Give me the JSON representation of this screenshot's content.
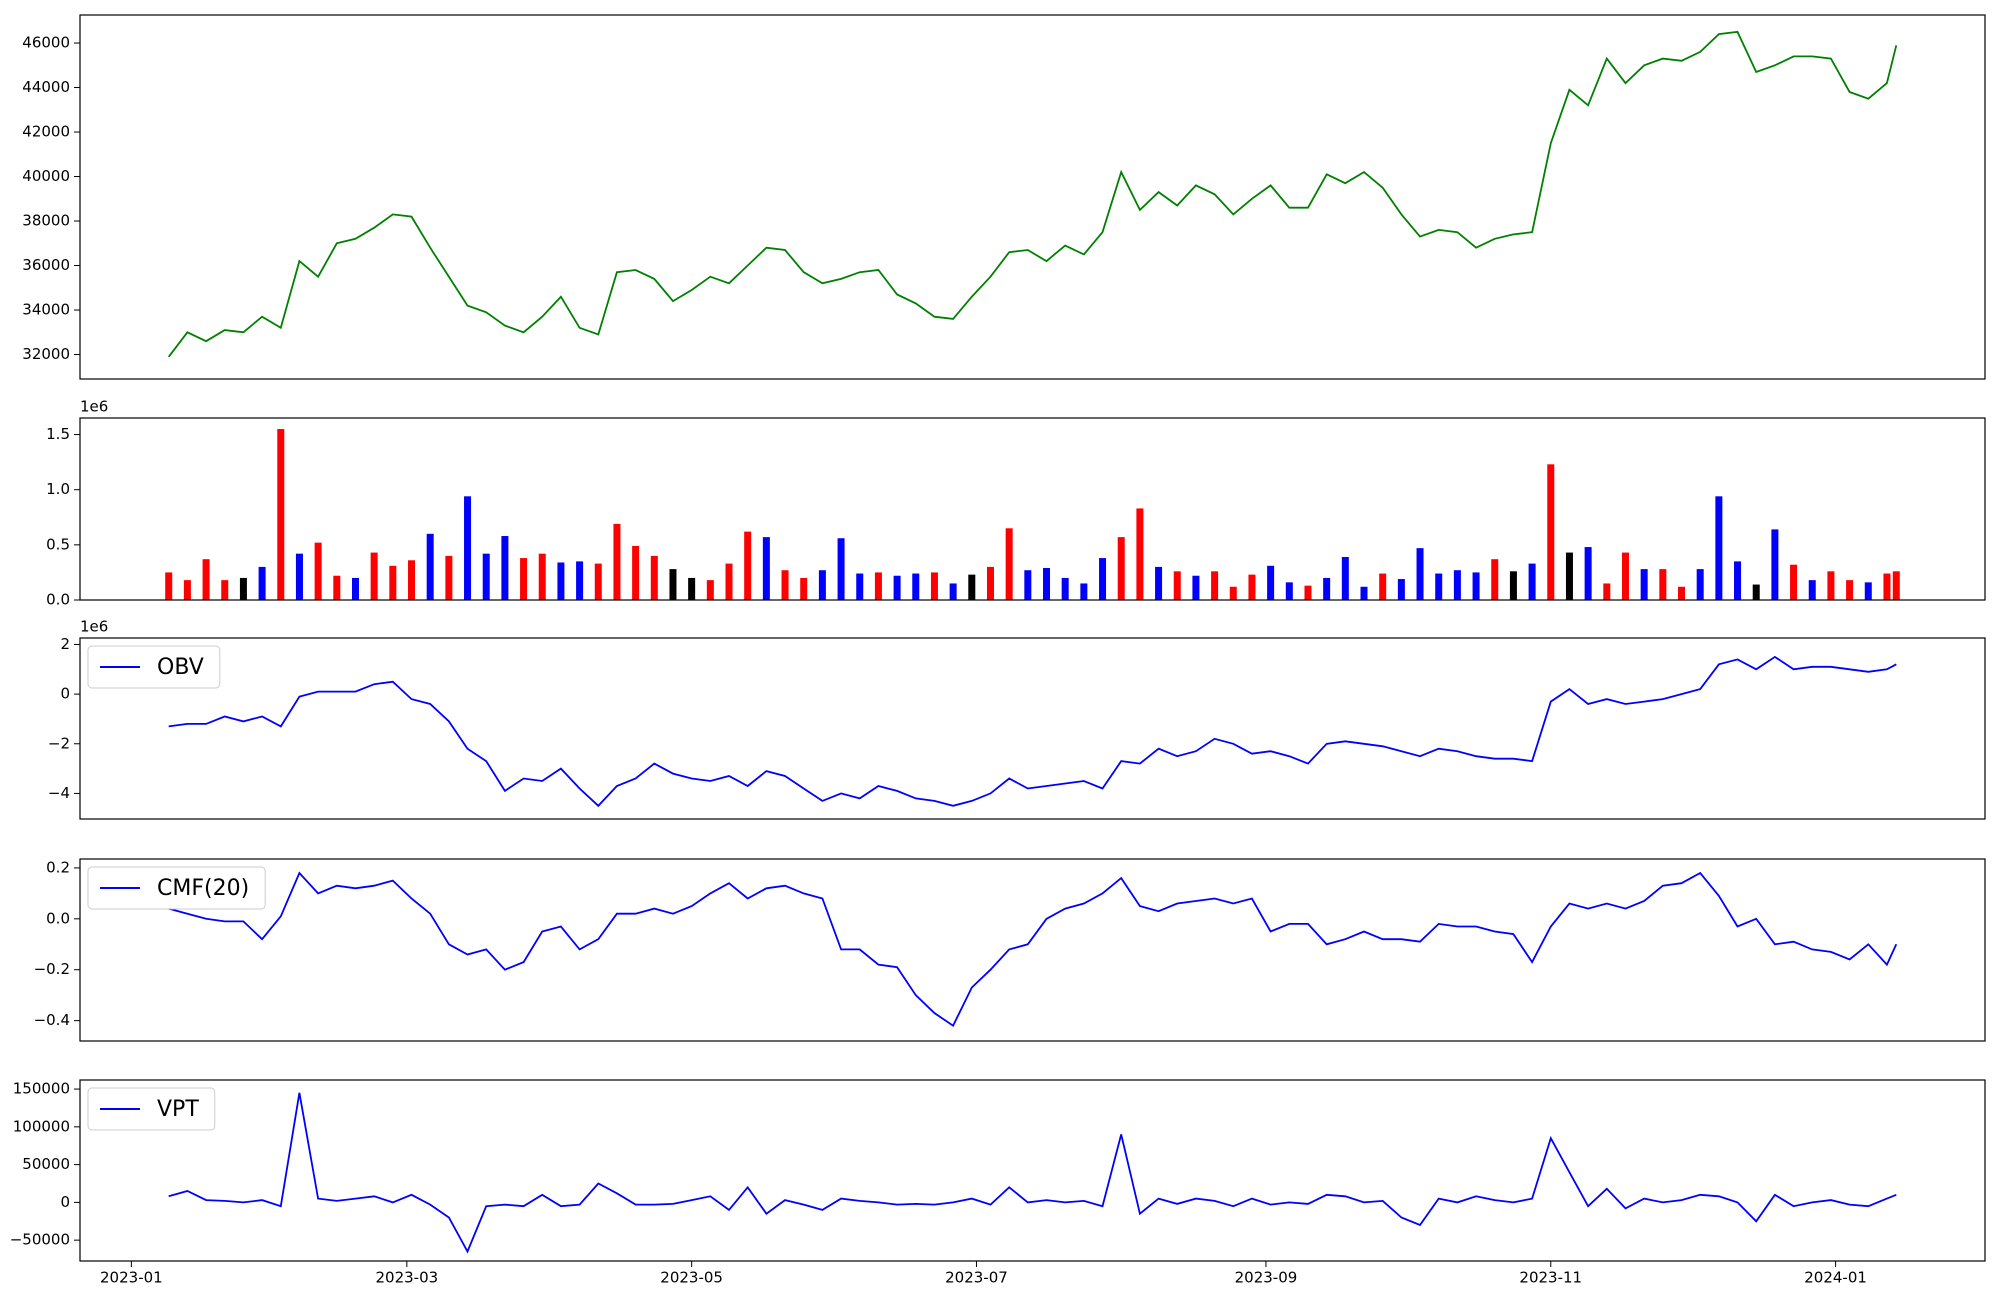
{
  "chart_data": {
    "type": "panels",
    "x": [
      "2023-01-09",
      "2023-01-13",
      "2023-01-17",
      "2023-01-21",
      "2023-01-25",
      "2023-01-29",
      "2023-02-02",
      "2023-02-06",
      "2023-02-10",
      "2023-02-14",
      "2023-02-18",
      "2023-02-22",
      "2023-02-26",
      "2023-03-02",
      "2023-03-06",
      "2023-03-10",
      "2023-03-14",
      "2023-03-18",
      "2023-03-22",
      "2023-03-26",
      "2023-03-30",
      "2023-04-03",
      "2023-04-07",
      "2023-04-11",
      "2023-04-15",
      "2023-04-19",
      "2023-04-23",
      "2023-04-27",
      "2023-05-01",
      "2023-05-05",
      "2023-05-09",
      "2023-05-13",
      "2023-05-17",
      "2023-05-21",
      "2023-05-25",
      "2023-05-29",
      "2023-06-02",
      "2023-06-06",
      "2023-06-10",
      "2023-06-14",
      "2023-06-18",
      "2023-06-22",
      "2023-06-26",
      "2023-06-30",
      "2023-07-04",
      "2023-07-08",
      "2023-07-12",
      "2023-07-16",
      "2023-07-20",
      "2023-07-24",
      "2023-07-28",
      "2023-08-01",
      "2023-08-05",
      "2023-08-09",
      "2023-08-13",
      "2023-08-17",
      "2023-08-21",
      "2023-08-25",
      "2023-08-29",
      "2023-09-02",
      "2023-09-06",
      "2023-09-10",
      "2023-09-14",
      "2023-09-18",
      "2023-09-22",
      "2023-09-26",
      "2023-09-30",
      "2023-10-04",
      "2023-10-08",
      "2023-10-12",
      "2023-10-16",
      "2023-10-20",
      "2023-10-24",
      "2023-10-28",
      "2023-11-01",
      "2023-11-05",
      "2023-11-09",
      "2023-11-13",
      "2023-11-17",
      "2023-11-21",
      "2023-11-25",
      "2023-11-29",
      "2023-12-03",
      "2023-12-07",
      "2023-12-11",
      "2023-12-15",
      "2023-12-19",
      "2023-12-23",
      "2023-12-27",
      "2023-12-31",
      "2024-01-04",
      "2024-01-08",
      "2024-01-12",
      "2024-01-14"
    ],
    "xlim": [
      "2022-12-21",
      "2024-02-02"
    ],
    "xticks": [
      {
        "value": "2023-01-01",
        "label": "2023-01"
      },
      {
        "value": "2023-03-01",
        "label": "2023-03"
      },
      {
        "value": "2023-05-01",
        "label": "2023-05"
      },
      {
        "value": "2023-07-01",
        "label": "2023-07"
      },
      {
        "value": "2023-09-01",
        "label": "2023-09"
      },
      {
        "value": "2023-11-01",
        "label": "2023-11"
      },
      {
        "value": "2024-01-01",
        "label": "2024-01"
      }
    ],
    "panels": [
      {
        "type": "line",
        "ylim": [
          30900,
          47260
        ],
        "yticks": [
          32000,
          34000,
          36000,
          38000,
          40000,
          42000,
          44000,
          46000
        ],
        "series": [
          {
            "color": "#008000",
            "values": [
              31900,
              33000,
              32600,
              33100,
              33000,
              33700,
              33200,
              36200,
              35500,
              37000,
              37200,
              37700,
              38300,
              38200,
              36800,
              35500,
              34200,
              33900,
              33300,
              33000,
              33700,
              34600,
              33200,
              32900,
              35700,
              35800,
              35400,
              34400,
              34900,
              35500,
              35200,
              36000,
              36800,
              36700,
              35700,
              35200,
              35400,
              35700,
              35800,
              34700,
              34300,
              33700,
              33600,
              34600,
              35500,
              36600,
              36700,
              36200,
              36900,
              36500,
              37500,
              40200,
              38500,
              39300,
              38700,
              39600,
              39200,
              38300,
              39000,
              39600,
              38600,
              38600,
              40100,
              39700,
              40200,
              39500,
              38300,
              37300,
              37600,
              37500,
              36800,
              37200,
              37400,
              37500,
              41500,
              43900,
              43200,
              45300,
              44200,
              45000,
              45300,
              45200,
              45600,
              46400,
              46500,
              44700,
              45000,
              45400,
              45400,
              45300,
              43800,
              43500,
              44200,
              45900
            ]
          }
        ]
      },
      {
        "type": "bar",
        "ylim": [
          0,
          1650000
        ],
        "offset_label": "1e6",
        "yticks": [
          {
            "value": 0,
            "label": "0.0"
          },
          {
            "value": 500000,
            "label": "0.5"
          },
          {
            "value": 1000000,
            "label": "1.0"
          },
          {
            "value": 1500000,
            "label": "1.5"
          }
        ],
        "values": [
          250000,
          180000,
          370000,
          180000,
          200000,
          300000,
          1550000,
          420000,
          520000,
          220000,
          200000,
          430000,
          310000,
          360000,
          600000,
          400000,
          940000,
          420000,
          580000,
          380000,
          420000,
          340000,
          350000,
          330000,
          690000,
          490000,
          400000,
          280000,
          200000,
          180000,
          330000,
          620000,
          570000,
          270000,
          200000,
          270000,
          560000,
          240000,
          250000,
          220000,
          240000,
          250000,
          150000,
          230000,
          300000,
          650000,
          270000,
          290000,
          200000,
          150000,
          380000,
          570000,
          830000,
          300000,
          260000,
          220000,
          260000,
          120000,
          230000,
          310000,
          160000,
          130000,
          200000,
          390000,
          120000,
          240000,
          190000,
          470000,
          240000,
          270000,
          250000,
          370000,
          260000,
          330000,
          1230000,
          430000,
          480000,
          150000,
          430000,
          280000,
          280000,
          120000,
          280000,
          940000,
          350000,
          140000,
          640000,
          320000,
          180000,
          260000,
          180000,
          160000,
          240000,
          260000
        ],
        "colors": [
          "red",
          "red",
          "red",
          "red",
          "black",
          "blue",
          "red",
          "blue",
          "red",
          "red",
          "blue",
          "red",
          "red",
          "red",
          "blue",
          "red",
          "blue",
          "blue",
          "blue",
          "red",
          "red",
          "blue",
          "blue",
          "red",
          "red",
          "red",
          "red",
          "black",
          "black",
          "red",
          "red",
          "red",
          "blue",
          "red",
          "red",
          "blue",
          "blue",
          "blue",
          "red",
          "blue",
          "blue",
          "red",
          "blue",
          "black",
          "red",
          "red",
          "blue",
          "blue",
          "blue",
          "blue",
          "blue",
          "red",
          "red",
          "blue",
          "red",
          "blue",
          "red",
          "red",
          "red",
          "blue",
          "blue",
          "red",
          "blue",
          "blue",
          "blue",
          "red",
          "blue",
          "blue",
          "blue",
          "blue",
          "blue",
          "red",
          "black",
          "blue",
          "red",
          "black",
          "blue",
          "red",
          "red",
          "blue",
          "red",
          "red",
          "blue",
          "blue",
          "blue",
          "black",
          "blue",
          "red",
          "blue",
          "red",
          "red",
          "blue",
          "red",
          "red"
        ]
      },
      {
        "type": "line",
        "ylim": [
          -5030000,
          2260000
        ],
        "offset_label": "1e6",
        "legend": "upper left",
        "yticks": [
          {
            "value": -4000000,
            "label": "−4"
          },
          {
            "value": -2000000,
            "label": "−2"
          },
          0,
          {
            "value": 2000000,
            "label": "2"
          }
        ],
        "series": [
          {
            "name": "OBV",
            "color": "blue",
            "values": [
              -1300000,
              -1200000,
              -1200000,
              -900000,
              -1100000,
              -900000,
              -1300000,
              -100000,
              100000,
              100000,
              100000,
              400000,
              500000,
              -200000,
              -400000,
              -1100000,
              -2200000,
              -2700000,
              -3900000,
              -3400000,
              -3500000,
              -3000000,
              -3800000,
              -4500000,
              -3700000,
              -3400000,
              -2800000,
              -3200000,
              -3400000,
              -3500000,
              -3300000,
              -3700000,
              -3100000,
              -3300000,
              -3800000,
              -4300000,
              -4000000,
              -4200000,
              -3700000,
              -3900000,
              -4200000,
              -4300000,
              -4500000,
              -4300000,
              -4000000,
              -3400000,
              -3800000,
              -3700000,
              -3600000,
              -3500000,
              -3800000,
              -2700000,
              -2800000,
              -2200000,
              -2500000,
              -2300000,
              -1800000,
              -2000000,
              -2400000,
              -2300000,
              -2500000,
              -2800000,
              -2000000,
              -1900000,
              -2000000,
              -2100000,
              -2300000,
              -2500000,
              -2200000,
              -2300000,
              -2500000,
              -2600000,
              -2600000,
              -2700000,
              -300000,
              200000,
              -400000,
              -200000,
              -400000,
              -300000,
              -200000,
              0,
              200000,
              1200000,
              1400000,
              1000000,
              1500000,
              1000000,
              1100000,
              1100000,
              1000000,
              900000,
              1000000,
              1200000
            ]
          }
        ]
      },
      {
        "type": "line",
        "ylim": [
          -0.48,
          0.235
        ],
        "legend": "upper left",
        "yticks": [
          {
            "value": -0.4,
            "label": "−0.4"
          },
          {
            "value": -0.2,
            "label": "−0.2"
          },
          {
            "value": 0,
            "label": "0.0"
          },
          0.2
        ],
        "series": [
          {
            "name": "CMF(20)",
            "color": "blue",
            "values": [
              0.04,
              0.02,
              0.0,
              -0.01,
              -0.01,
              -0.08,
              0.01,
              0.18,
              0.1,
              0.13,
              0.12,
              0.13,
              0.15,
              0.08,
              0.02,
              -0.1,
              -0.14,
              -0.12,
              -0.2,
              -0.17,
              -0.05,
              -0.03,
              -0.12,
              -0.08,
              0.02,
              0.02,
              0.04,
              0.02,
              0.05,
              0.1,
              0.14,
              0.08,
              0.12,
              0.13,
              0.1,
              0.08,
              -0.12,
              -0.12,
              -0.18,
              -0.19,
              -0.3,
              -0.37,
              -0.42,
              -0.27,
              -0.2,
              -0.12,
              -0.1,
              0.0,
              0.04,
              0.06,
              0.1,
              0.16,
              0.05,
              0.03,
              0.06,
              0.07,
              0.08,
              0.06,
              0.08,
              -0.05,
              -0.02,
              -0.02,
              -0.1,
              -0.08,
              -0.05,
              -0.08,
              -0.08,
              -0.09,
              -0.02,
              -0.03,
              -0.03,
              -0.05,
              -0.06,
              -0.17,
              -0.03,
              0.06,
              0.04,
              0.06,
              0.04,
              0.07,
              0.13,
              0.14,
              0.18,
              0.09,
              -0.03,
              0.0,
              -0.1,
              -0.09,
              -0.12,
              -0.13,
              -0.16,
              -0.1,
              -0.18,
              -0.1
            ]
          }
        ]
      },
      {
        "type": "line",
        "ylim": [
          -77600,
          162000
        ],
        "legend": "upper left",
        "yticks": [
          {
            "value": -50000,
            "label": "−50000"
          },
          0,
          50000,
          100000,
          150000
        ],
        "series": [
          {
            "name": "VPT",
            "color": "blue",
            "values": [
              8000,
              15000,
              3000,
              2000,
              0,
              3000,
              -5000,
              145000,
              5000,
              2000,
              5000,
              8000,
              0,
              10000,
              -3000,
              -20000,
              -65000,
              -5000,
              -3000,
              -5000,
              10000,
              -5000,
              -3000,
              25000,
              12000,
              -3000,
              -3000,
              -2000,
              3000,
              8000,
              -10000,
              20000,
              -15000,
              3000,
              -3000,
              -10000,
              5000,
              2000,
              0,
              -3000,
              -2000,
              -3000,
              0,
              5000,
              -3000,
              20000,
              0,
              3000,
              0,
              2000,
              -5000,
              90000,
              -15000,
              5000,
              -2000,
              5000,
              2000,
              -5000,
              5000,
              -3000,
              0,
              -2000,
              10000,
              8000,
              0,
              2000,
              -20000,
              -30000,
              5000,
              0,
              8000,
              3000,
              0,
              5000,
              85000,
              40000,
              -5000,
              18000,
              -8000,
              5000,
              0,
              3000,
              10000,
              8000,
              0,
              -25000,
              10000,
              -5000,
              0,
              3000,
              -3000,
              -5000,
              5000,
              10000
            ]
          }
        ]
      }
    ]
  }
}
